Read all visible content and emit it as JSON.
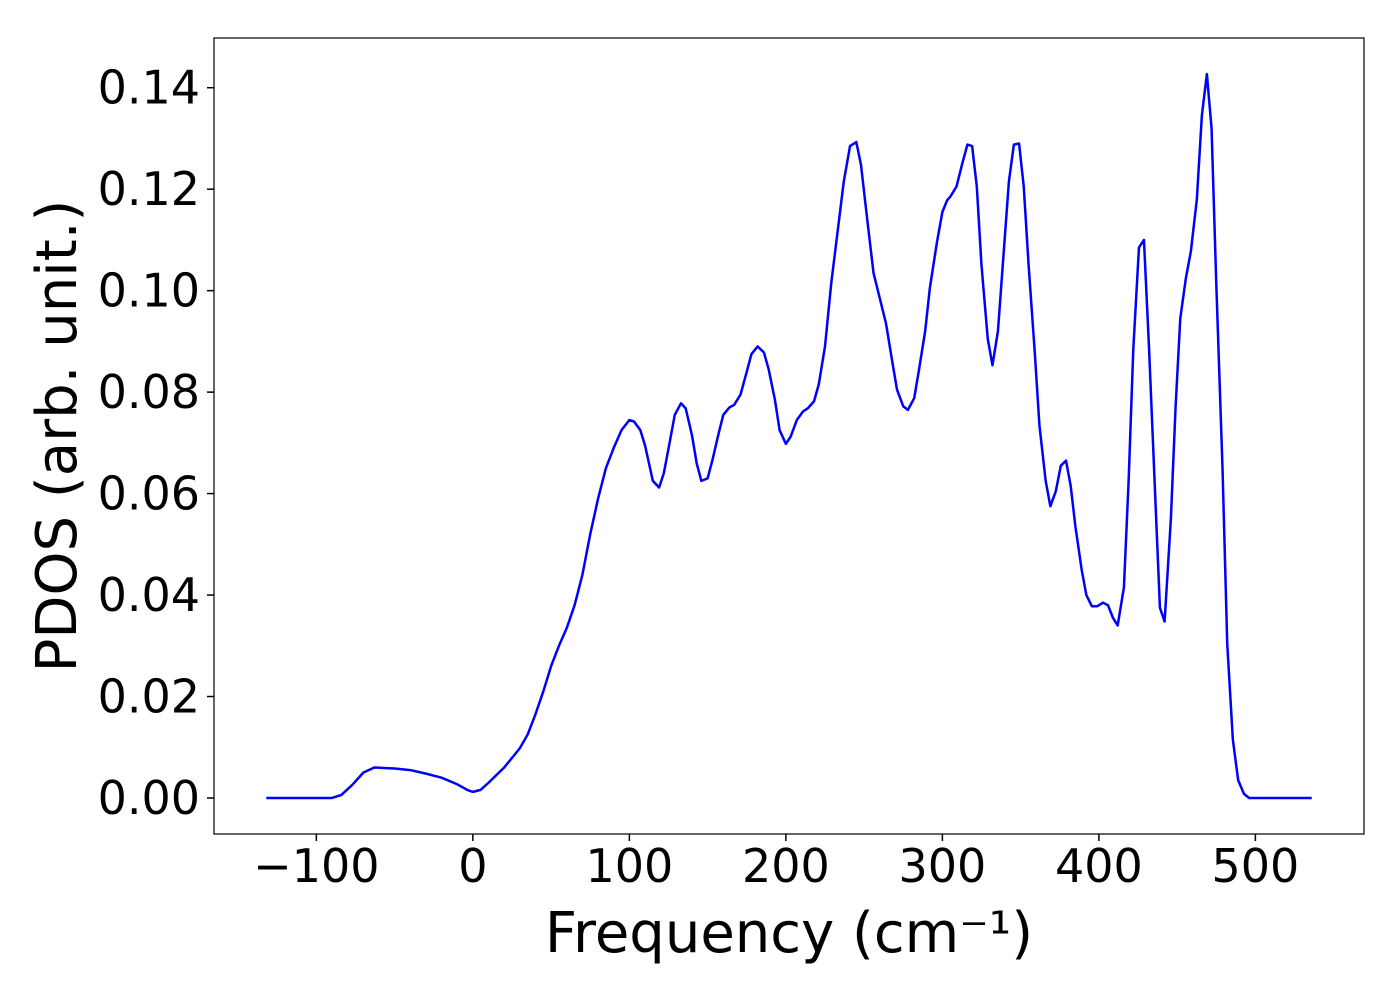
{
  "chart_data": {
    "type": "line",
    "xlabel": "Frequency (cm⁻¹)",
    "ylabel": "PDOS (arb. unit.)",
    "color": "#0000ff",
    "xlim": [
      -165.4,
      569.4
    ],
    "ylim": [
      -0.0071,
      0.1498
    ],
    "xticks": [
      {
        "value": -100,
        "label": "−100"
      },
      0,
      100,
      200,
      300,
      400,
      500
    ],
    "yticks": [
      {
        "value": 0,
        "label": "0.00"
      },
      {
        "value": 0.02,
        "label": "0.02"
      },
      {
        "value": 0.04,
        "label": "0.04"
      },
      {
        "value": 0.06,
        "label": "0.06"
      },
      {
        "value": 0.08,
        "label": "0.08"
      },
      {
        "value": 0.1,
        "label": "0.10"
      },
      {
        "value": 0.12,
        "label": "0.12"
      },
      {
        "value": 0.14,
        "label": "0.14"
      }
    ],
    "x": [
      -132,
      -90,
      -84,
      -77,
      -70,
      -63,
      -50,
      -40,
      -30,
      -20,
      -10,
      -3,
      0,
      5,
      10,
      20,
      30,
      35,
      40,
      45,
      50,
      55,
      60,
      65,
      70,
      75,
      80,
      85,
      90,
      95,
      100,
      103,
      107,
      110,
      115,
      119,
      122,
      126,
      129,
      133,
      136,
      140,
      143,
      146,
      150,
      153,
      157,
      160,
      164,
      167,
      171,
      175,
      178,
      182,
      186,
      189,
      193,
      196,
      200,
      203,
      207,
      211,
      214,
      218,
      221,
      225,
      229,
      233,
      237,
      241,
      245,
      248,
      252,
      256,
      260,
      264,
      268,
      271,
      275,
      278,
      282,
      285,
      289,
      292,
      296.5,
      300,
      303,
      305,
      309,
      312.5,
      316,
      319,
      322,
      325,
      329,
      332,
      335.5,
      338.7,
      342.5,
      345.7,
      349,
      352,
      355,
      359,
      362,
      366,
      369,
      372.5,
      375.7,
      379,
      382,
      385,
      389,
      392,
      395.5,
      399,
      402.6,
      405.8,
      409,
      412,
      416,
      419,
      422,
      425.6,
      428.8,
      432,
      436,
      439,
      442,
      446,
      449,
      452,
      455.6,
      458.8,
      462.6,
      465.8,
      469,
      472,
      475,
      479,
      482,
      485.6,
      489,
      492.7,
      496,
      536
    ],
    "values": [
      0,
      0,
      0.0006,
      0.0026,
      0.005,
      0.006,
      0.0058,
      0.0055,
      0.0048,
      0.004,
      0.0027,
      0.0015,
      0.0012,
      0.0016,
      0.003,
      0.006,
      0.0098,
      0.0125,
      0.0165,
      0.021,
      0.026,
      0.03,
      0.0335,
      0.038,
      0.044,
      0.052,
      0.059,
      0.065,
      0.069,
      0.0725,
      0.0745,
      0.0742,
      0.0725,
      0.0695,
      0.0625,
      0.0612,
      0.064,
      0.0705,
      0.0755,
      0.0778,
      0.0768,
      0.0715,
      0.066,
      0.0625,
      0.063,
      0.0665,
      0.0718,
      0.0755,
      0.077,
      0.0775,
      0.0795,
      0.084,
      0.0875,
      0.089,
      0.0878,
      0.0845,
      0.0785,
      0.0725,
      0.0698,
      0.0712,
      0.0745,
      0.0762,
      0.0768,
      0.0782,
      0.0815,
      0.089,
      0.1015,
      0.1115,
      0.1215,
      0.1285,
      0.1293,
      0.1248,
      0.114,
      0.1035,
      0.0985,
      0.0935,
      0.086,
      0.0805,
      0.0772,
      0.0765,
      0.0788,
      0.0843,
      0.092,
      0.1005,
      0.1095,
      0.1155,
      0.1178,
      0.1185,
      0.1205,
      0.1248,
      0.1288,
      0.1285,
      0.1205,
      0.105,
      0.0905,
      0.0853,
      0.092,
      0.1055,
      0.1215,
      0.1288,
      0.129,
      0.1205,
      0.1055,
      0.088,
      0.0735,
      0.0625,
      0.0575,
      0.0605,
      0.0655,
      0.0665,
      0.0615,
      0.0535,
      0.045,
      0.04,
      0.0378,
      0.0378,
      0.0385,
      0.038,
      0.0355,
      0.034,
      0.0415,
      0.0625,
      0.0885,
      0.1085,
      0.11,
      0.089,
      0.0595,
      0.0375,
      0.0348,
      0.055,
      0.077,
      0.0945,
      0.1025,
      0.1078,
      0.118,
      0.1345,
      0.1427,
      0.132,
      0.1015,
      0.065,
      0.0305,
      0.0115,
      0.0035,
      0.0008,
      0,
      0
    ]
  }
}
